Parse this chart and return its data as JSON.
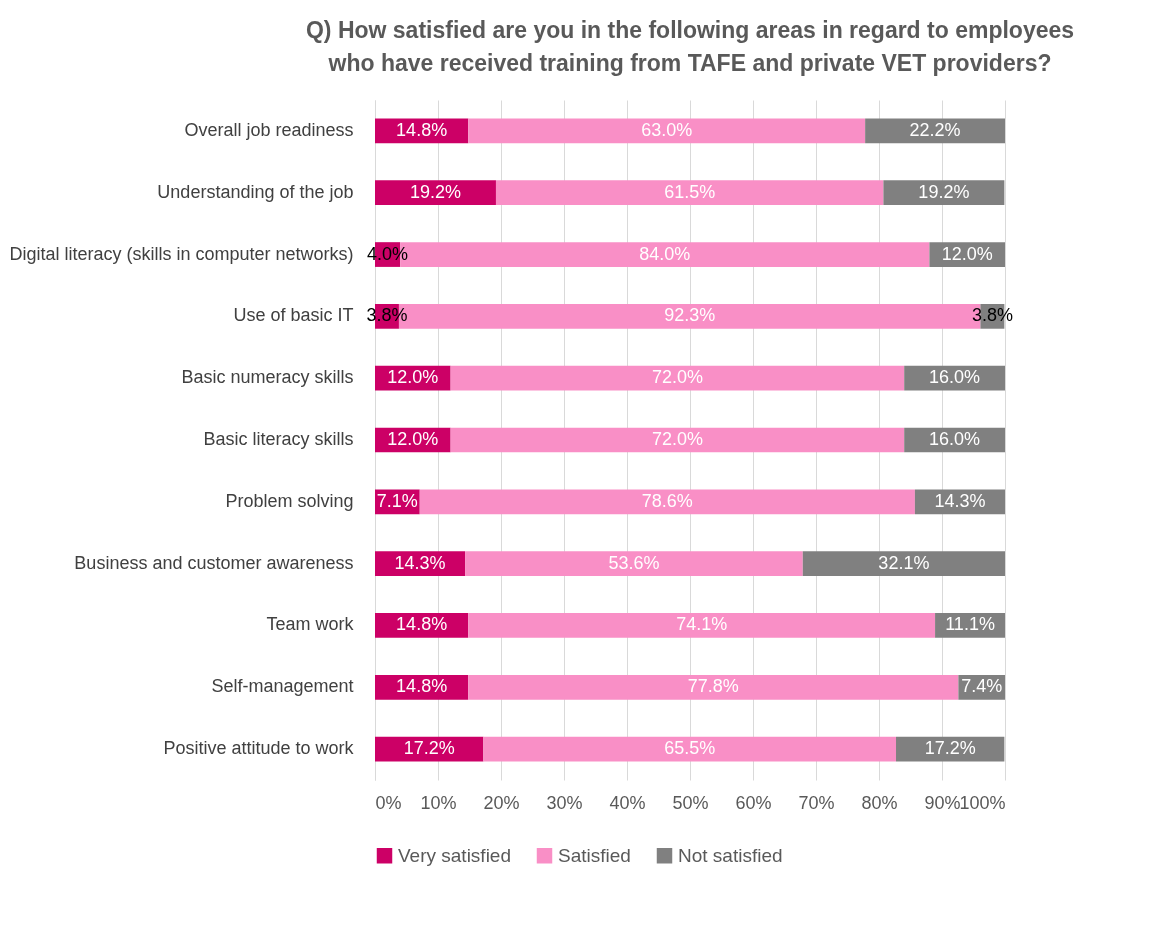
{
  "chart_data": {
    "type": "bar",
    "orientation": "horizontal",
    "stacked": true,
    "title": "Q) How satisfied are you in the following areas in regard to employees\nwho have received training from TAFE and private VET providers?",
    "categories": [
      "Overall job readiness",
      "Understanding of the job",
      "Digital literacy (skills in computer networks)",
      "Use of basic IT",
      "Basic numeracy skills",
      "Basic literacy skills",
      "Problem solving",
      "Business and customer awareness",
      "Team work",
      "Self-management",
      "Positive attitude to work"
    ],
    "series": [
      {
        "name": "Very satisfied",
        "color": "#cc0066",
        "values": [
          14.8,
          19.2,
          4.0,
          3.8,
          12.0,
          12.0,
          7.1,
          14.3,
          14.8,
          14.8,
          17.2
        ],
        "value_labels": [
          "14.8%",
          "19.2%",
          "4.0%",
          "3.8%",
          "12.0%",
          "12.0%",
          "7.1%",
          "14.3%",
          "14.8%",
          "14.8%",
          "17.2%"
        ]
      },
      {
        "name": "Satisfied",
        "color": "#f98fc6",
        "values": [
          63.0,
          61.5,
          84.0,
          92.3,
          72.0,
          72.0,
          78.6,
          53.6,
          74.1,
          77.8,
          65.5
        ],
        "value_labels": [
          "63.0%",
          "61.5%",
          "84.0%",
          "92.3%",
          "72.0%",
          "72.0%",
          "78.6%",
          "53.6%",
          "74.1%",
          "77.8%",
          "65.5%"
        ]
      },
      {
        "name": "Not satisfied",
        "color": "#808080",
        "values": [
          22.2,
          19.2,
          12.0,
          3.8,
          16.0,
          16.0,
          14.3,
          32.1,
          11.1,
          7.4,
          17.2
        ],
        "value_labels": [
          "22.2%",
          "19.2%",
          "12.0%",
          "3.8%",
          "16.0%",
          "16.0%",
          "14.3%",
          "32.1%",
          "11.1%",
          "7.4%",
          "17.2%"
        ]
      }
    ],
    "xlim": [
      0,
      100
    ],
    "xticks": [
      {
        "value": 0,
        "label": "0%"
      },
      {
        "value": 10,
        "label": "10%"
      },
      {
        "value": 20,
        "label": "20%"
      },
      {
        "value": 30,
        "label": "30%"
      },
      {
        "value": 40,
        "label": "40%"
      },
      {
        "value": 50,
        "label": "50%"
      },
      {
        "value": 60,
        "label": "60%"
      },
      {
        "value": 70,
        "label": "70%"
      },
      {
        "value": 80,
        "label": "80%"
      },
      {
        "value": 90,
        "label": "90%"
      },
      {
        "value": 100,
        "label": "100%"
      }
    ],
    "grid": "x",
    "legend": "bottom"
  }
}
